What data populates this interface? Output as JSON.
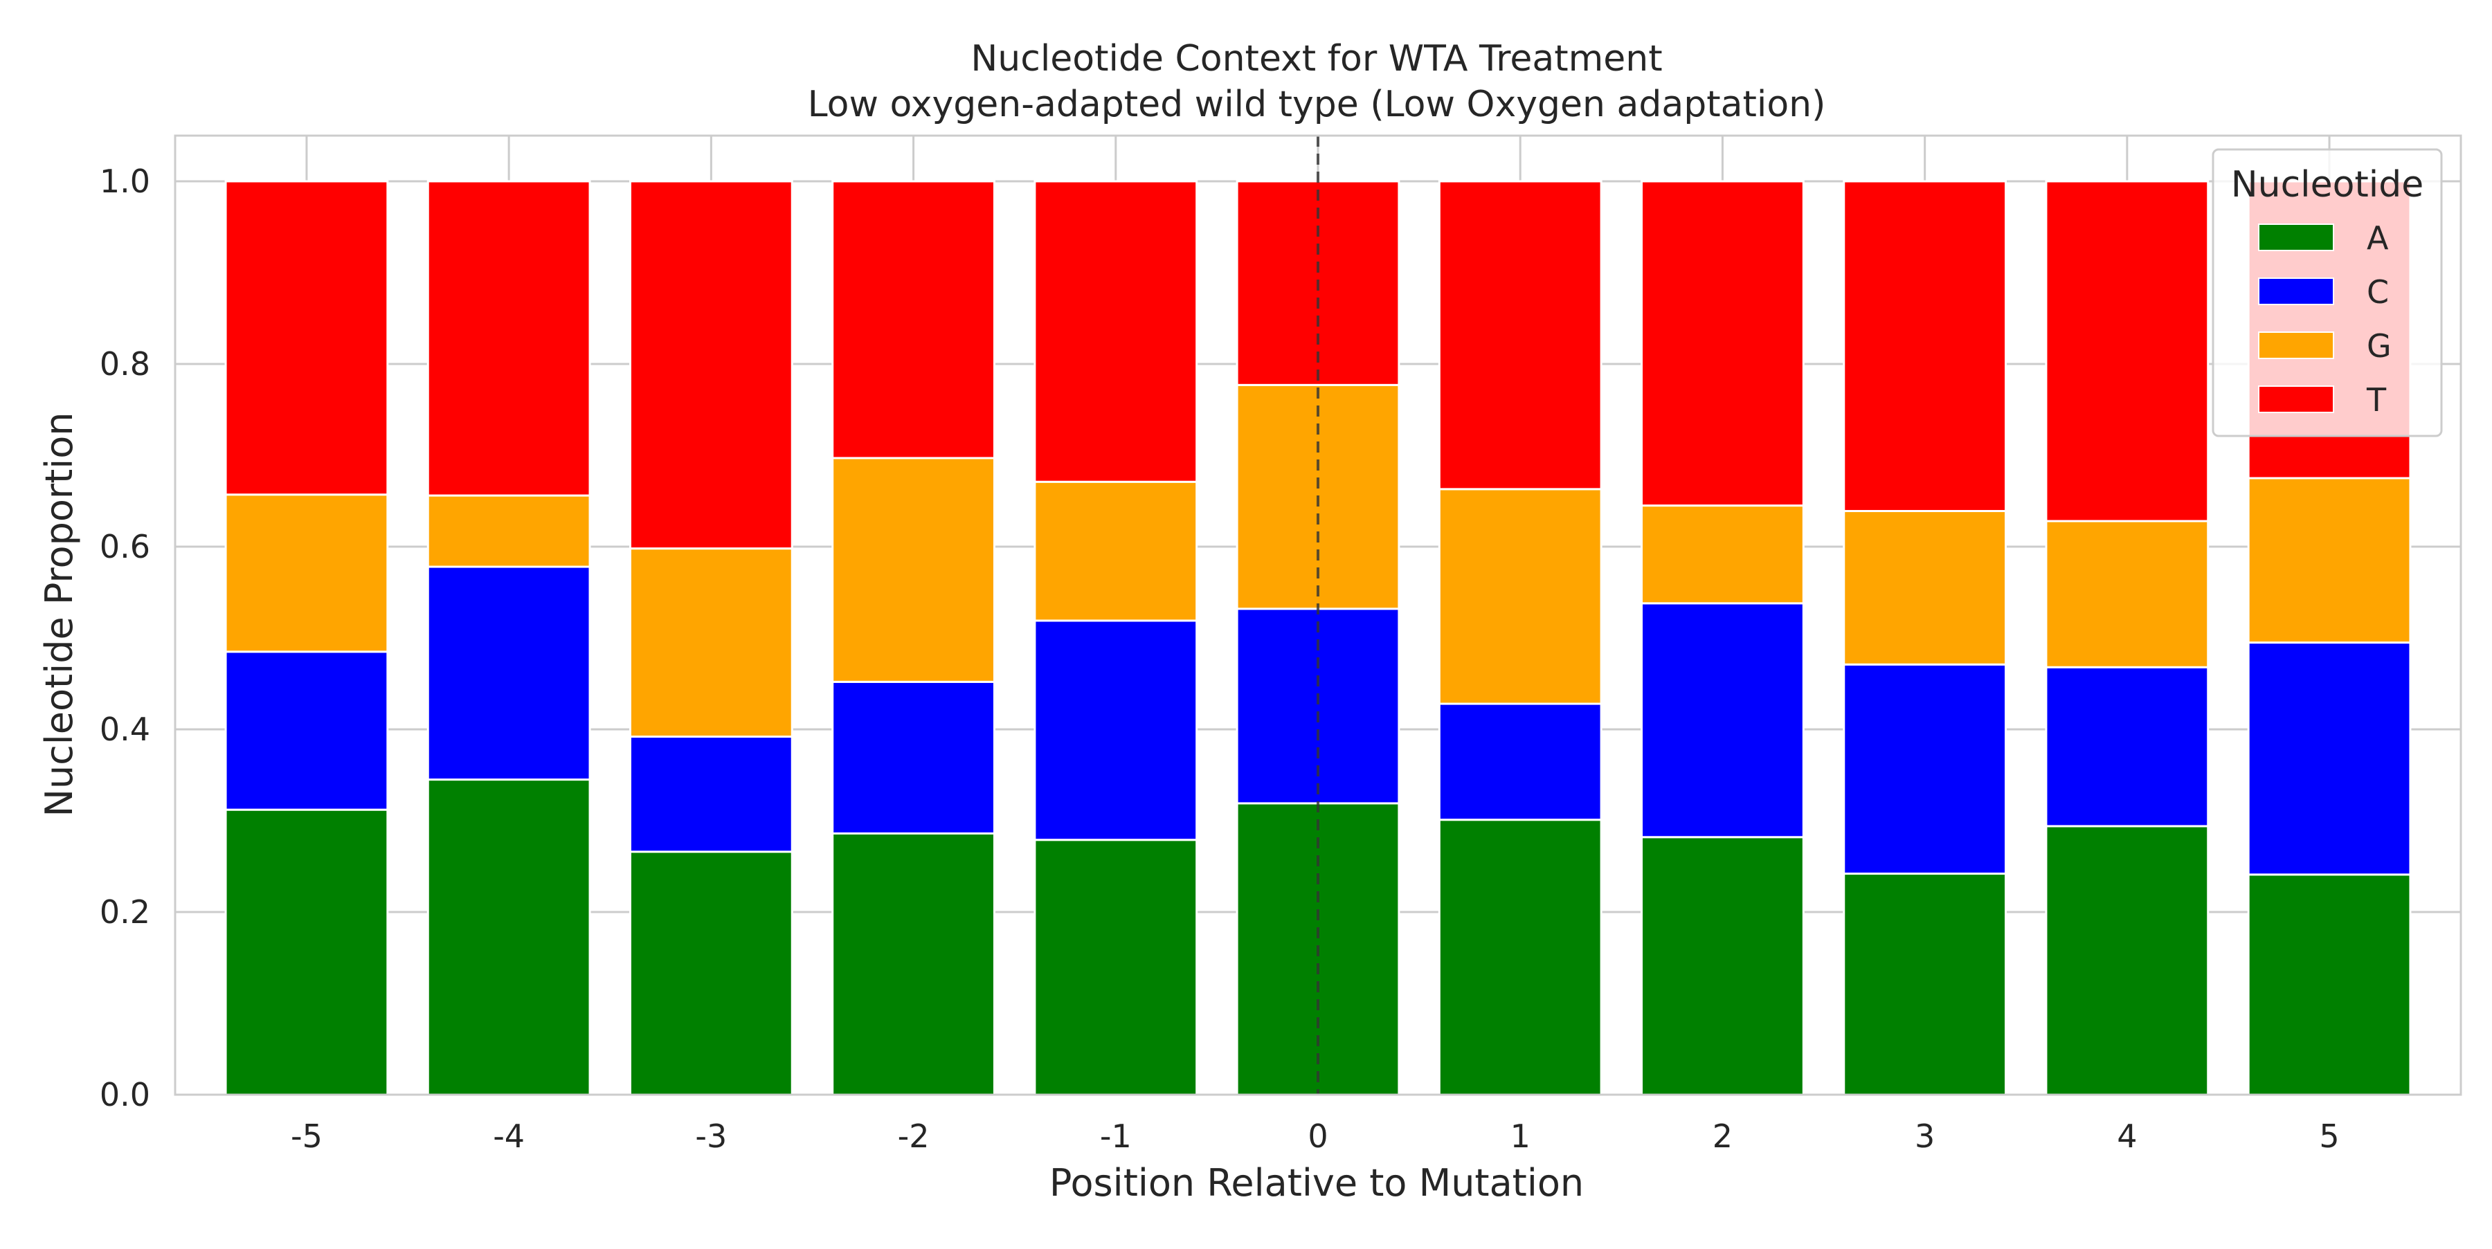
{
  "chart_data": {
    "type": "bar",
    "stacked": true,
    "title": "Nucleotide Context for WTA Treatment",
    "subtitle": "Low oxygen-adapted wild type (Low Oxygen adaptation)",
    "xlabel": "Position Relative to Mutation",
    "ylabel": "Nucleotide Proportion",
    "categories": [
      "-5",
      "-4",
      "-3",
      "-2",
      "-1",
      "0",
      "1",
      "2",
      "3",
      "4",
      "5"
    ],
    "ylim": [
      0,
      1.05
    ],
    "yticks": [
      "0.0",
      "0.2",
      "0.4",
      "0.6",
      "0.8",
      "1.0"
    ],
    "grid": true,
    "reference_line": {
      "category": "0",
      "style": "dashed"
    },
    "legend": {
      "title": "Nucleotide",
      "placement": "top-right"
    },
    "series": [
      {
        "name": "A",
        "color": "#008000",
        "values": [
          0.312,
          0.345,
          0.266,
          0.286,
          0.279,
          0.319,
          0.301,
          0.282,
          0.242,
          0.294,
          0.241
        ]
      },
      {
        "name": "C",
        "color": "#0000ff",
        "values": [
          0.173,
          0.233,
          0.126,
          0.166,
          0.24,
          0.213,
          0.127,
          0.256,
          0.229,
          0.174,
          0.254
        ]
      },
      {
        "name": "G",
        "color": "#ffa500",
        "values": [
          0.172,
          0.078,
          0.206,
          0.245,
          0.152,
          0.245,
          0.235,
          0.107,
          0.168,
          0.16,
          0.18
        ]
      },
      {
        "name": "T",
        "color": "#ff0000",
        "values": [
          0.343,
          0.344,
          0.402,
          0.303,
          0.329,
          0.223,
          0.337,
          0.355,
          0.361,
          0.372,
          0.325
        ]
      }
    ]
  }
}
